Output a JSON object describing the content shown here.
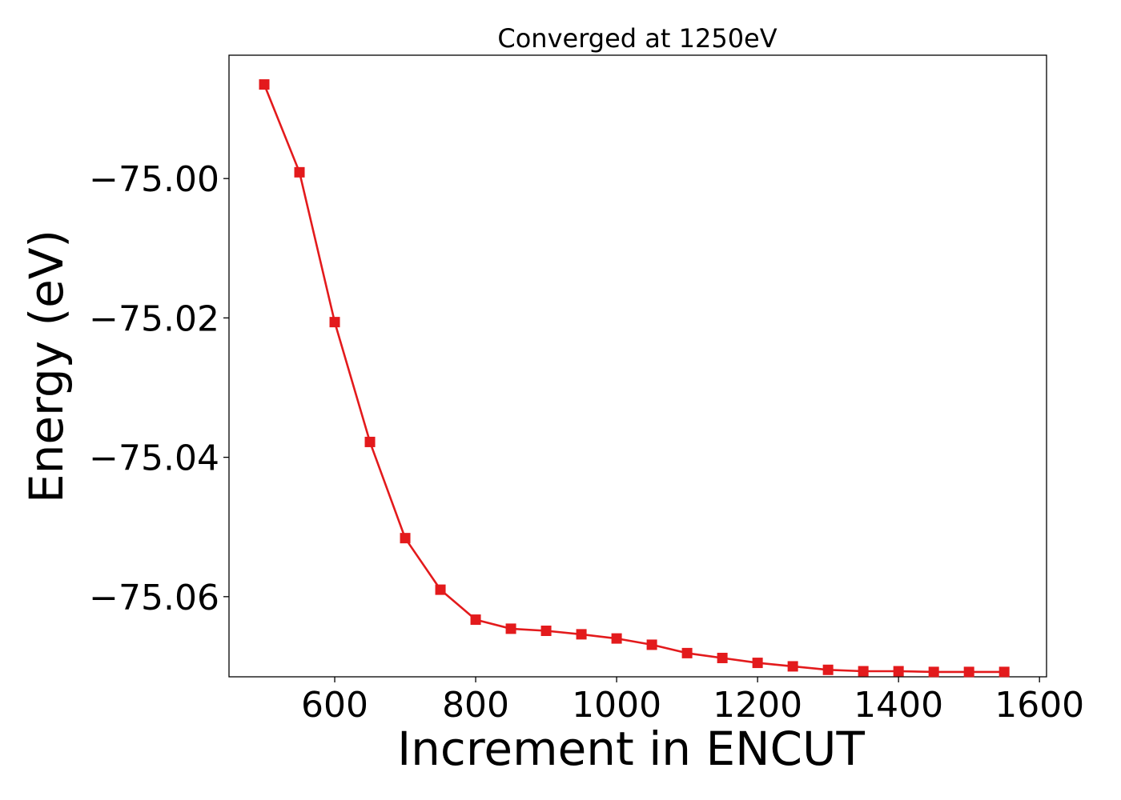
{
  "chart_data": {
    "type": "line",
    "title": "Converged at 1250eV",
    "xlabel": "Increment in ENCUT",
    "ylabel": "Energy (eV)",
    "xlim": [
      450,
      1610
    ],
    "ylim": [
      -75.0715,
      -74.9823
    ],
    "x_ticks": [
      600,
      800,
      1000,
      1200,
      1400,
      1600
    ],
    "x_tick_labels": [
      "600",
      "800",
      "1000",
      "1200",
      "1400",
      "1600"
    ],
    "y_ticks": [
      -75.0,
      -75.02,
      -75.04,
      -75.06
    ],
    "y_tick_labels": [
      "−75.00",
      "−75.02",
      "−75.04",
      "−75.06"
    ],
    "grid": false,
    "series": [
      {
        "color": "#e31a1c",
        "marker": "square",
        "x": [
          500,
          550,
          600,
          650,
          700,
          750,
          800,
          850,
          900,
          950,
          1000,
          1050,
          1100,
          1150,
          1200,
          1250,
          1300,
          1350,
          1400,
          1450,
          1500,
          1550
        ],
        "y": [
          -74.9865,
          -74.9991,
          -75.0206,
          -75.0378,
          -75.0516,
          -75.059,
          -75.0633,
          -75.0646,
          -75.0649,
          -75.0654,
          -75.066,
          -75.0669,
          -75.0681,
          -75.0688,
          -75.0695,
          -75.07,
          -75.0705,
          -75.0707,
          -75.0707,
          -75.0708,
          -75.0708,
          -75.0708
        ]
      }
    ]
  }
}
